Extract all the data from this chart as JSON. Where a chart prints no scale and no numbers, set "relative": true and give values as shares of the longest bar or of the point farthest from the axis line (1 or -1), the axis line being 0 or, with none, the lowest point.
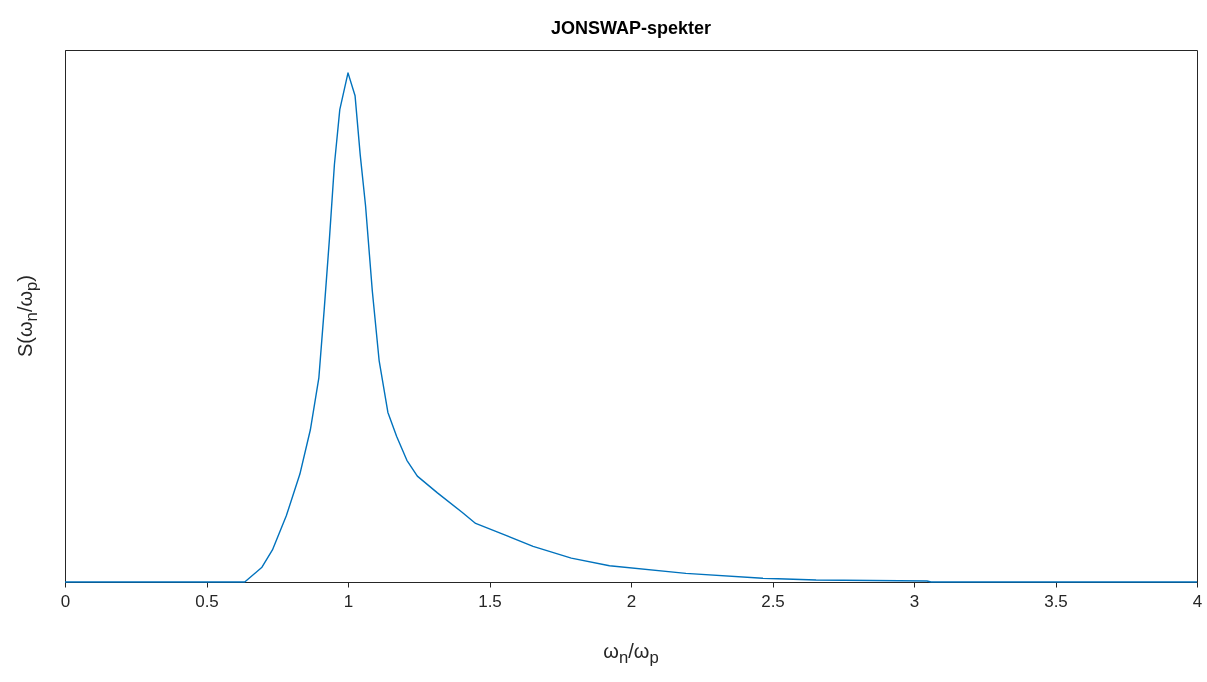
{
  "chart_data": {
    "type": "line",
    "title": "JONSWAP-spekter",
    "xlabel": "ω$_{n}$/ω$_{p}$",
    "ylabel": "S(ω$_{n}$/ω$_{p}$)",
    "relative": true,
    "xlim": [
      0,
      4
    ],
    "xticks": [
      0,
      0.5,
      1,
      1.5,
      2,
      2.5,
      3,
      3.5,
      4
    ],
    "grid": false,
    "marker": "none",
    "line_style": "solid",
    "series": [
      {
        "color": "#0072bd",
        "x": [
          0,
          0.63,
          0.635,
          0.696,
          0.733,
          0.782,
          0.83,
          0.867,
          0.897,
          0.916,
          0.934,
          0.952,
          0.971,
          1.0,
          1.025,
          1.043,
          1.062,
          1.086,
          1.11,
          1.141,
          1.172,
          1.208,
          1.245,
          1.316,
          1.403,
          1.451,
          1.538,
          1.654,
          1.789,
          1.924,
          2.194,
          2.465,
          2.654,
          3.046,
          3.06,
          4
        ],
        "values": [
          0,
          0,
          0,
          0.029,
          0.063,
          0.13,
          0.212,
          0.299,
          0.401,
          0.536,
          0.671,
          0.82,
          0.928,
          1,
          0.955,
          0.84,
          0.739,
          0.571,
          0.435,
          0.333,
          0.286,
          0.239,
          0.208,
          0.175,
          0.137,
          0.115,
          0.096,
          0.07,
          0.047,
          0.032,
          0.017,
          0.0075,
          0.004,
          0.002,
          0,
          0
        ]
      }
    ]
  }
}
